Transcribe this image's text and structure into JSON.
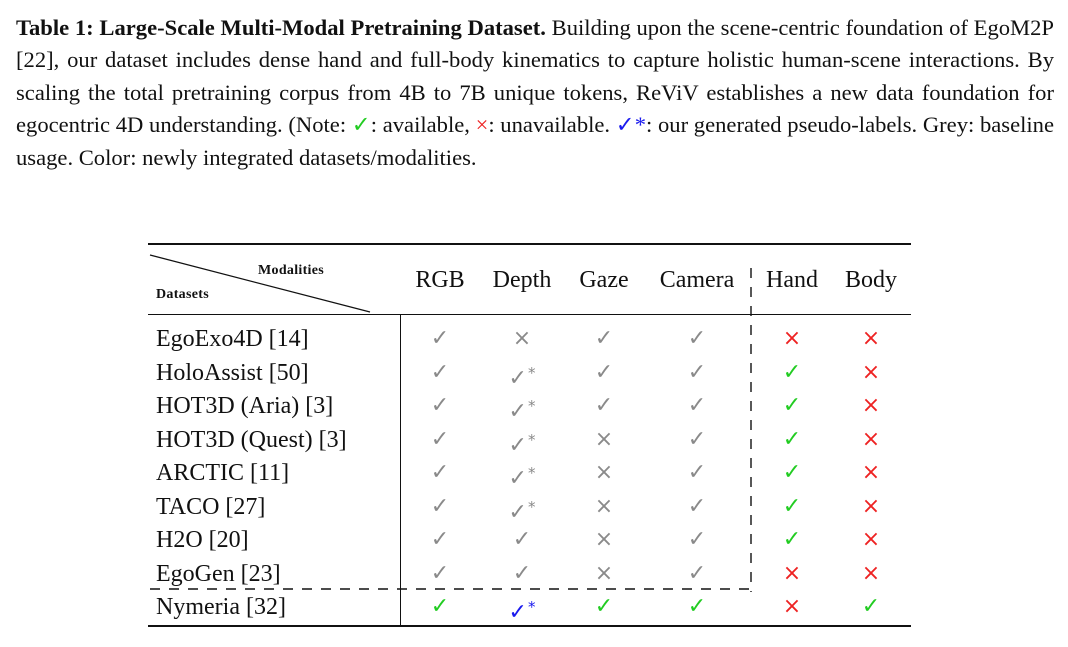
{
  "caption": {
    "lead": "Table 1: Large-Scale Multi-Modal Pretraining Dataset.",
    "body1": " Building upon the scene-centric foundation of EgoM2P [22], our dataset includes dense hand and full-body kinematics to capture holistic human-scene interactions. By scaling the total pretraining corpus from 4B to 7B unique tokens, ReViV establishes a new data foundation for egocentric 4D understanding. (Note: ",
    "check_symbol": "✓",
    "available_text": ": available, ",
    "cross_symbol": "×",
    "unavailable_text": ": unavailable. ",
    "pseudo_symbol": "✓*",
    "pseudo_text": ": our generated pseudo-labels. Grey: baseline usage. Color: newly integrated datasets/modalities."
  },
  "table": {
    "corner_modalities": "Modalities",
    "corner_datasets": "Datasets",
    "columns": [
      "RGB",
      "Depth",
      "Gaze",
      "Camera",
      "Hand",
      "Body"
    ],
    "rows": [
      {
        "name": "EgoExo4D [14]",
        "cells": [
          {
            "sym": "✓",
            "star": "",
            "color": "grey"
          },
          {
            "sym": "×",
            "star": "",
            "color": "grey"
          },
          {
            "sym": "✓",
            "star": "",
            "color": "grey"
          },
          {
            "sym": "✓",
            "star": "",
            "color": "grey"
          },
          {
            "sym": "×",
            "star": "",
            "color": "red"
          },
          {
            "sym": "×",
            "star": "",
            "color": "red"
          }
        ]
      },
      {
        "name": "HoloAssist [50]",
        "cells": [
          {
            "sym": "✓",
            "star": "",
            "color": "grey"
          },
          {
            "sym": "✓",
            "star": "*",
            "color": "grey"
          },
          {
            "sym": "✓",
            "star": "",
            "color": "grey"
          },
          {
            "sym": "✓",
            "star": "",
            "color": "grey"
          },
          {
            "sym": "✓",
            "star": "",
            "color": "green"
          },
          {
            "sym": "×",
            "star": "",
            "color": "red"
          }
        ]
      },
      {
        "name": "HOT3D (Aria) [3]",
        "cells": [
          {
            "sym": "✓",
            "star": "",
            "color": "grey"
          },
          {
            "sym": "✓",
            "star": "*",
            "color": "grey"
          },
          {
            "sym": "✓",
            "star": "",
            "color": "grey"
          },
          {
            "sym": "✓",
            "star": "",
            "color": "grey"
          },
          {
            "sym": "✓",
            "star": "",
            "color": "green"
          },
          {
            "sym": "×",
            "star": "",
            "color": "red"
          }
        ]
      },
      {
        "name": "HOT3D (Quest) [3]",
        "cells": [
          {
            "sym": "✓",
            "star": "",
            "color": "grey"
          },
          {
            "sym": "✓",
            "star": "*",
            "color": "grey"
          },
          {
            "sym": "×",
            "star": "",
            "color": "grey"
          },
          {
            "sym": "✓",
            "star": "",
            "color": "grey"
          },
          {
            "sym": "✓",
            "star": "",
            "color": "green"
          },
          {
            "sym": "×",
            "star": "",
            "color": "red"
          }
        ]
      },
      {
        "name": "ARCTIC [11]",
        "cells": [
          {
            "sym": "✓",
            "star": "",
            "color": "grey"
          },
          {
            "sym": "✓",
            "star": "*",
            "color": "grey"
          },
          {
            "sym": "×",
            "star": "",
            "color": "grey"
          },
          {
            "sym": "✓",
            "star": "",
            "color": "grey"
          },
          {
            "sym": "✓",
            "star": "",
            "color": "green"
          },
          {
            "sym": "×",
            "star": "",
            "color": "red"
          }
        ]
      },
      {
        "name": "TACO [27]",
        "cells": [
          {
            "sym": "✓",
            "star": "",
            "color": "grey"
          },
          {
            "sym": "✓",
            "star": "*",
            "color": "grey"
          },
          {
            "sym": "×",
            "star": "",
            "color": "grey"
          },
          {
            "sym": "✓",
            "star": "",
            "color": "grey"
          },
          {
            "sym": "✓",
            "star": "",
            "color": "green"
          },
          {
            "sym": "×",
            "star": "",
            "color": "red"
          }
        ]
      },
      {
        "name": "H2O [20]",
        "cells": [
          {
            "sym": "✓",
            "star": "",
            "color": "grey"
          },
          {
            "sym": "✓",
            "star": "",
            "color": "grey"
          },
          {
            "sym": "×",
            "star": "",
            "color": "grey"
          },
          {
            "sym": "✓",
            "star": "",
            "color": "grey"
          },
          {
            "sym": "✓",
            "star": "",
            "color": "green"
          },
          {
            "sym": "×",
            "star": "",
            "color": "red"
          }
        ]
      },
      {
        "name": "EgoGen [23]",
        "cells": [
          {
            "sym": "✓",
            "star": "",
            "color": "grey"
          },
          {
            "sym": "✓",
            "star": "",
            "color": "grey"
          },
          {
            "sym": "×",
            "star": "",
            "color": "grey"
          },
          {
            "sym": "✓",
            "star": "",
            "color": "grey"
          },
          {
            "sym": "×",
            "star": "",
            "color": "red"
          },
          {
            "sym": "×",
            "star": "",
            "color": "red"
          }
        ]
      },
      {
        "name": "Nymeria [32]",
        "cells": [
          {
            "sym": "✓",
            "star": "",
            "color": "green"
          },
          {
            "sym": "✓",
            "star": "*",
            "color": "blue"
          },
          {
            "sym": "✓",
            "star": "",
            "color": "green"
          },
          {
            "sym": "✓",
            "star": "",
            "color": "green"
          },
          {
            "sym": "×",
            "star": "",
            "color": "red"
          },
          {
            "sym": "✓",
            "star": "",
            "color": "green"
          }
        ]
      }
    ]
  },
  "colors": {
    "grey": "#8a8a8a",
    "green": "#22cc22",
    "red": "#ee2222",
    "blue": "#1a1aee",
    "ink": "#111111"
  }
}
